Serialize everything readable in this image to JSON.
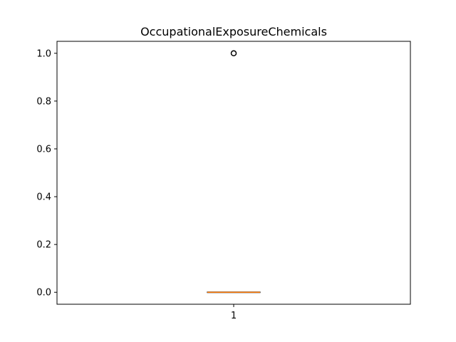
{
  "chart_data": {
    "type": "box",
    "title": "OccupationalExposureChemicals",
    "xlabel": "",
    "ylabel": "",
    "categories": [
      "1"
    ],
    "ylim": [
      -0.05,
      1.05
    ],
    "yticks": [
      "0.0",
      "0.2",
      "0.4",
      "0.6",
      "0.8",
      "1.0"
    ],
    "ytick_values": [
      0.0,
      0.2,
      0.4,
      0.6,
      0.8,
      1.0
    ],
    "boxes": [
      {
        "category": "1",
        "whisker_low": 0.0,
        "q1": 0.0,
        "median": 0.0,
        "q3": 0.0,
        "whisker_high": 0.0,
        "outliers": [
          1.0
        ]
      }
    ],
    "grid": false,
    "colors": {
      "box": "#000000",
      "median": "#ff7f0e",
      "outlier": "#000000"
    }
  }
}
